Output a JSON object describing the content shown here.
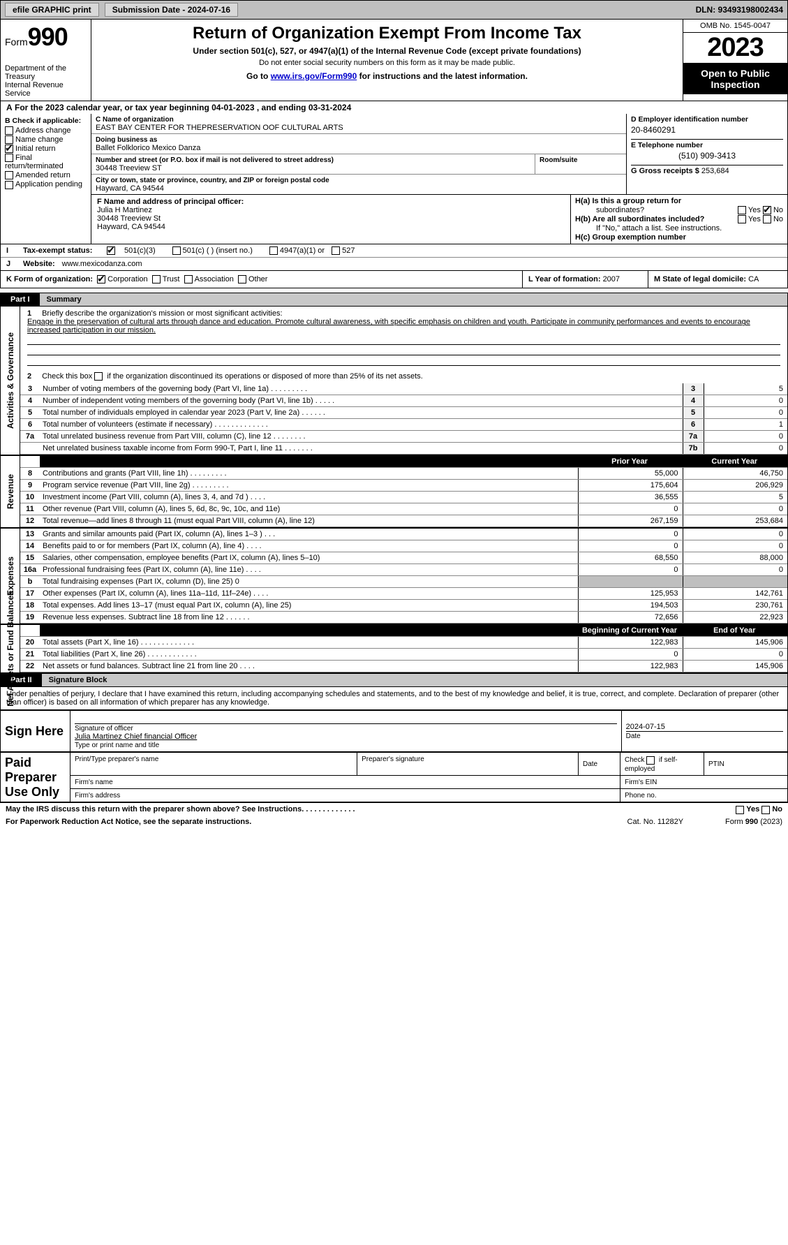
{
  "topbar": {
    "efile": "efile GRAPHIC print",
    "subdate_label": "Submission Date - ",
    "subdate": "2024-07-16",
    "dln": "DLN: 93493198002434"
  },
  "head": {
    "form_label": "Form",
    "form_no": "990",
    "dept": "Department of the Treasury\nInternal Revenue Service",
    "title": "Return of Organization Exempt From Income Tax",
    "sub": "Under section 501(c), 527, or 4947(a)(1) of the Internal Revenue Code (except private foundations)",
    "note": "Do not enter social security numbers on this form as it may be made public.",
    "go1": "Go to ",
    "go_link": "www.irs.gov/Form990",
    "go2": " for instructions and the latest information.",
    "omb": "OMB No. 1545-0047",
    "year": "2023",
    "open": "Open to Public Inspection"
  },
  "period": {
    "a": "A",
    "text1": "  For the 2023 calendar year, or tax year beginning ",
    "begin": "04-01-2023",
    "text2": "  , and ending ",
    "end": "03-31-2024"
  },
  "colB": {
    "hdr": "B Check if applicable:",
    "items": [
      {
        "label": "Address change",
        "checked": false
      },
      {
        "label": "Name change",
        "checked": false
      },
      {
        "label": "Initial return",
        "checked": true
      },
      {
        "label": "Final return/terminated",
        "checked": false
      },
      {
        "label": "Amended return",
        "checked": false
      },
      {
        "label": "Application pending",
        "checked": false
      }
    ]
  },
  "colC": {
    "c_label": "C Name of organization",
    "org": "EAST BAY CENTER FOR THEPRESERVATION OOF CULTURAL ARTS",
    "dba_label": "Doing business as",
    "dba": "Ballet Folklorico Mexico Danza",
    "street_label": "Number and street (or P.O. box if mail is not delivered to street address)",
    "street": "30448 Treeview ST",
    "room_label": "Room/suite",
    "room": "",
    "city_label": "City or town, state or province, country, and ZIP or foreign postal code",
    "city": "Hayward, CA  94544"
  },
  "colD": {
    "d_label": "D Employer identification number",
    "ein": "20-8460291",
    "e_label": "E Telephone number",
    "phone": "(510) 909-3413",
    "g_label": "G Gross receipts $ ",
    "gross": "253,684"
  },
  "colF": {
    "label": "F  Name and address of principal officer:",
    "name": "Julia H Martinez",
    "street": "30448 Treeview St",
    "city": "Hayward, CA  94544"
  },
  "colH": {
    "ha": "H(a)  Is this a group return for",
    "ha2": "subordinates?",
    "hb": "H(b)  Are all subordinates included?",
    "hbnote": "If \"No,\" attach a list. See instructions.",
    "hc": "H(c)  Group exemption number ",
    "yes": "Yes",
    "no": "No",
    "ha_yes": false,
    "ha_no": true,
    "hb_yes": false,
    "hb_no": false
  },
  "rowI": {
    "label": "Tax-exempt status:",
    "c501c3": true,
    "c501c3_label": "501(c)(3)",
    "c501c_label": "501(c) (  ) (insert no.)",
    "c4947_label": "4947(a)(1) or",
    "c527_label": "527"
  },
  "rowJ": {
    "label": "Website: ",
    "val": "www.mexicodanza.com"
  },
  "rowK": {
    "label": "K Form of organization:",
    "corp": true,
    "corp_label": "Corporation",
    "trust_label": "Trust",
    "assoc_label": "Association",
    "other_label": "Other"
  },
  "rowL": {
    "label": "L Year of formation: ",
    "val": "2007"
  },
  "rowM": {
    "label": "M State of legal domicile: ",
    "val": "CA"
  },
  "part1": {
    "tab": "Part I",
    "title": "Summary",
    "sections": [
      {
        "label": "Activities & Governance"
      },
      {
        "label": "Revenue"
      },
      {
        "label": "Expenses"
      },
      {
        "label": "Net Assets or Fund Balances"
      }
    ],
    "q1_num": "1",
    "q1_text": "Briefly describe the organization's mission or most significant activities:",
    "q1_val": "Engage in the preservation of cultural arts through dance and education. Promote cultural awareness, with specific emphasis on children and youth. Participate in community performances and events to encourage increased participation in our mission.",
    "q2_num": "2",
    "q2_text": "Check this box         if the organization discontinued its operations or disposed of more than 25% of its net assets.",
    "gov_rows": [
      {
        "n": "3",
        "t": "Number of voting members of the governing body (Part VI, line 1a)   .    .    .    .    .    .    .    .    .",
        "r": "3",
        "v": "5"
      },
      {
        "n": "4",
        "t": "Number of independent voting members of the governing body (Part VI, line 1b)   .    .    .    .    .",
        "r": "4",
        "v": "0"
      },
      {
        "n": "5",
        "t": "Total number of individuals employed in calendar year 2023 (Part V, line 2a)   .    .    .    .    .    .",
        "r": "5",
        "v": "0"
      },
      {
        "n": "6",
        "t": "Total number of volunteers (estimate if necessary)    .    .    .    .    .    .    .    .    .    .    .    .    .",
        "r": "6",
        "v": "1"
      },
      {
        "n": "7a",
        "t": "Total unrelated business revenue from Part VIII, column (C), line 12   .    .    .    .    .    .    .    .",
        "r": "7a",
        "v": "0"
      },
      {
        "n": "",
        "t": "Net unrelated business taxable income from Form 990-T, Part I, line 11   .    .    .    .    .    .    .",
        "r": "7b",
        "v": "0"
      }
    ],
    "pycy_hdr": {
      "py": "Prior Year",
      "cy": "Current Year"
    },
    "rev_rows": [
      {
        "n": "8",
        "t": "Contributions and grants (Part VIII, line 1h)    .    .    .    .    .    .    .    .    .",
        "py": "55,000",
        "cy": "46,750"
      },
      {
        "n": "9",
        "t": "Program service revenue (Part VIII, line 2g)   .    .    .    .    .    .    .    .    .",
        "py": "175,604",
        "cy": "206,929"
      },
      {
        "n": "10",
        "t": "Investment income (Part VIII, column (A), lines 3, 4, and 7d )    .    .    .    .",
        "py": "36,555",
        "cy": "5"
      },
      {
        "n": "11",
        "t": "Other revenue (Part VIII, column (A), lines 5, 6d, 8c, 9c, 10c, and 11e)",
        "py": "0",
        "cy": "0"
      },
      {
        "n": "12",
        "t": "Total revenue—add lines 8 through 11 (must equal Part VIII, column (A), line 12)",
        "py": "267,159",
        "cy": "253,684"
      }
    ],
    "exp_rows": [
      {
        "n": "13",
        "t": "Grants and similar amounts paid (Part IX, column (A), lines 1–3 )   .    .    .",
        "py": "0",
        "cy": "0"
      },
      {
        "n": "14",
        "t": "Benefits paid to or for members (Part IX, column (A), line 4)   .    .    .    .",
        "py": "0",
        "cy": "0"
      },
      {
        "n": "15",
        "t": "Salaries, other compensation, employee benefits (Part IX, column (A), lines 5–10)",
        "py": "68,550",
        "cy": "88,000"
      },
      {
        "n": "16a",
        "t": "Professional fundraising fees (Part IX, column (A), line 11e)   .    .    .    .",
        "py": "0",
        "cy": "0"
      },
      {
        "n": "b",
        "t": "Total fundraising expenses (Part IX, column (D), line 25)  0",
        "py": "SHADE",
        "cy": "SHADE"
      },
      {
        "n": "17",
        "t": "Other expenses (Part IX, column (A), lines 11a–11d, 11f–24e)   .    .    .    .",
        "py": "125,953",
        "cy": "142,761"
      },
      {
        "n": "18",
        "t": "Total expenses. Add lines 13–17 (must equal Part IX, column (A), line 25)",
        "py": "194,503",
        "cy": "230,761"
      },
      {
        "n": "19",
        "t": "Revenue less expenses. Subtract line 18 from line 12   .    .    .    .    .    .",
        "py": "72,656",
        "cy": "22,923"
      }
    ],
    "na_hdr": {
      "py": "Beginning of Current Year",
      "cy": "End of Year"
    },
    "na_rows": [
      {
        "n": "20",
        "t": "Total assets (Part X, line 16)   .    .    .    .    .    .    .    .    .    .    .    .    .",
        "py": "122,983",
        "cy": "145,906"
      },
      {
        "n": "21",
        "t": "Total liabilities (Part X, line 26)   .    .    .    .    .    .    .    .    .    .    .    .",
        "py": "0",
        "cy": "0"
      },
      {
        "n": "22",
        "t": "Net assets or fund balances. Subtract line 21 from line 20   .    .    .    .",
        "py": "122,983",
        "cy": "145,906"
      }
    ]
  },
  "part2": {
    "tab": "Part II",
    "title": "Signature Block",
    "decl": "Under penalties of perjury, I declare that I have examined this return, including accompanying schedules and statements, and to the best of my knowledge and belief, it is true, correct, and complete. Declaration of preparer (other than officer) is based on all information of which preparer has any knowledge.",
    "sign_here": "Sign Here",
    "sig_officer_label": "Signature of officer",
    "sig_officer": "Julia Martinez  Chief financial Officer",
    "type_label": "Type or print name and title",
    "date_label": "Date",
    "date_val": "2024-07-15",
    "paid": "Paid Preparer Use Only",
    "p_name_label": "Print/Type preparer's name",
    "p_sig_label": "Preparer's signature",
    "p_date_label": "Date",
    "p_check_label": "Check        if self-employed",
    "ptin_label": "PTIN",
    "firm_name_label": "Firm's name   ",
    "firm_ein_label": "Firm's EIN   ",
    "firm_addr_label": "Firm's address   ",
    "phone_label": "Phone no."
  },
  "footer": {
    "q": "May the IRS discuss this return with the preparer shown above? See Instructions.   .    .    .    .    .    .    .    .    .    .    .    .",
    "yes": "Yes",
    "no": "No",
    "pra": "For Paperwork Reduction Act Notice, see the separate instructions.",
    "cat": "Cat. No. 11282Y",
    "form": "Form 990 (2023)"
  }
}
